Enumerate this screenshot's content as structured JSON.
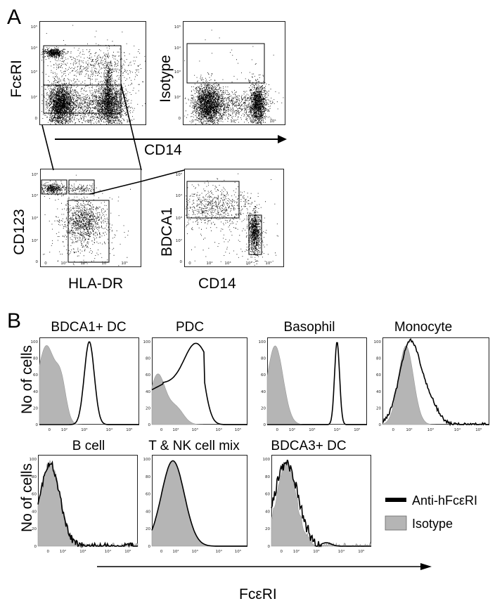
{
  "panel_a": {
    "letter": "A",
    "plots": [
      {
        "id": "a1",
        "ylabel": "FcεRI",
        "xlabel": ""
      },
      {
        "id": "a2",
        "ylabel": "Isotype",
        "xlabel": ""
      },
      {
        "id": "a3",
        "ylabel": "CD123",
        "xlabel": "HLA-DR"
      },
      {
        "id": "a4",
        "ylabel": "BDCA1",
        "xlabel": "CD14"
      }
    ],
    "shared_xlabel": "CD14",
    "x_ticks": [
      "0",
      "10²",
      "10³",
      "10⁴",
      "10⁵"
    ],
    "y_ticks": [
      "0",
      "10²",
      "10³",
      "10⁴",
      "10⁵"
    ]
  },
  "panel_b": {
    "letter": "B",
    "ylabel": "No of cells",
    "xlabel": "FcεRI",
    "y_ticks": [
      "0",
      "20",
      "40",
      "60",
      "80",
      "100"
    ],
    "x_ticks": [
      "0",
      "10²",
      "10³",
      "10⁴",
      "10⁵"
    ],
    "histograms": [
      {
        "title": "BDCA1+ DC"
      },
      {
        "title": "PDC"
      },
      {
        "title": "Basophil"
      },
      {
        "title": "Monocyte"
      },
      {
        "title": "B cell"
      },
      {
        "title": "T & NK cell mix"
      },
      {
        "title": "BDCA3+ DC"
      }
    ],
    "legend": [
      {
        "label": "Anti-hFcεRI",
        "color": "#000000"
      },
      {
        "label": "Isotype",
        "color": "#b5b5b5"
      }
    ]
  }
}
